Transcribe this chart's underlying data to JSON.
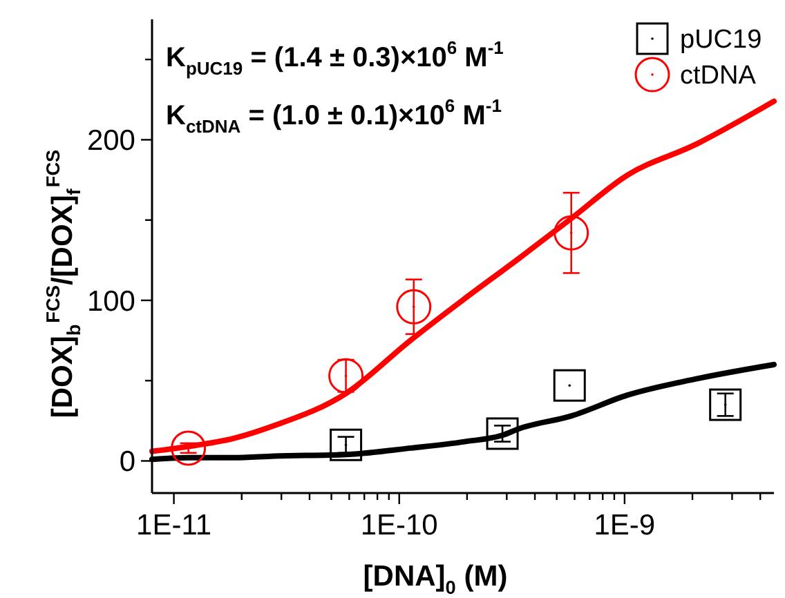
{
  "chart_data": {
    "type": "scatter",
    "xlabel": "[DNA]$_{0}$ (M)",
    "ylabel": "[DOX]$_{b}$$^{FCS}$/[DOX]$_{f}$$^{FCS}$",
    "annotations": [
      "K$_{pUC19}$ = (1.4 ± 0.3)×10$^{6}$ M$^{-1}$",
      "K$_{ctDNA}$ = (1.0 ± 0.1)×10$^{6}$ M$^{-1}$"
    ],
    "log": "x",
    "xlim": [
      8e-12,
      4.6e-09
    ],
    "ylim": [
      -20,
      275
    ],
    "xticks": [
      {
        "value": 1e-11,
        "label": "1E-11"
      },
      {
        "value": 2e-11,
        "label": null
      },
      {
        "value": 3e-11,
        "label": null
      },
      {
        "value": 4e-11,
        "label": null
      },
      {
        "value": 5e-11,
        "label": null
      },
      {
        "value": 6e-11,
        "label": null
      },
      {
        "value": 7e-11,
        "label": null
      },
      {
        "value": 8e-11,
        "label": null
      },
      {
        "value": 9e-11,
        "label": null
      },
      {
        "value": 1e-10,
        "label": "1E-10"
      },
      {
        "value": 2e-10,
        "label": null
      },
      {
        "value": 3e-10,
        "label": null
      },
      {
        "value": 4e-10,
        "label": null
      },
      {
        "value": 5e-10,
        "label": null
      },
      {
        "value": 6e-10,
        "label": null
      },
      {
        "value": 7e-10,
        "label": null
      },
      {
        "value": 8e-10,
        "label": null
      },
      {
        "value": 9e-10,
        "label": null
      },
      {
        "value": 1e-09,
        "label": "1E-9"
      },
      {
        "value": 2e-09,
        "label": null
      },
      {
        "value": 3e-09,
        "label": null
      },
      {
        "value": 4e-09,
        "label": null
      }
    ],
    "yticks": [
      0,
      {
        "value": 50,
        "label": null
      },
      100,
      {
        "value": 150,
        "label": null
      },
      200,
      {
        "value": 250,
        "label": null
      }
    ],
    "grid": false,
    "legend": "top right",
    "series": [
      {
        "name": "pUC19",
        "marker": "square",
        "color": "#000000",
        "x": [
          5.8e-11,
          2.87e-10,
          5.7e-10,
          2.8e-09
        ],
        "values": [
          10,
          17,
          47,
          35
        ],
        "errors": [
          5,
          5,
          null,
          7
        ]
      },
      {
        "name": "ctDNA",
        "marker": "circle",
        "color": "#ff0000",
        "x": [
          1.16e-11,
          5.8e-11,
          1.16e-10,
          5.8e-10
        ],
        "values": [
          8,
          53,
          96,
          142
        ],
        "errors": [
          3,
          10,
          17,
          25
        ]
      },
      {
        "type": "line",
        "color": "#000000",
        "x": [
          8e-12,
          1.16e-11,
          1.84e-11,
          2.79e-11,
          5.8e-11,
          1.12e-10,
          1.95e-10,
          2.87e-10,
          3.39e-10,
          5.8e-10,
          1.03e-09,
          2.06e-09,
          4.6e-09
        ],
        "values": [
          1,
          2,
          2,
          3,
          4,
          8,
          12,
          16,
          20,
          28,
          41,
          51,
          60
        ]
      },
      {
        "type": "line",
        "color": "#ff0000",
        "x": [
          8e-12,
          1.16e-11,
          1.84e-11,
          2.79e-11,
          5.8e-11,
          1.12e-10,
          1.95e-10,
          3.39e-10,
          5.8e-10,
          1.03e-09,
          2.06e-09,
          4.6e-09
        ],
        "values": [
          6,
          9,
          14,
          22,
          42,
          75,
          101,
          126,
          151,
          178,
          197,
          224
        ]
      }
    ]
  }
}
